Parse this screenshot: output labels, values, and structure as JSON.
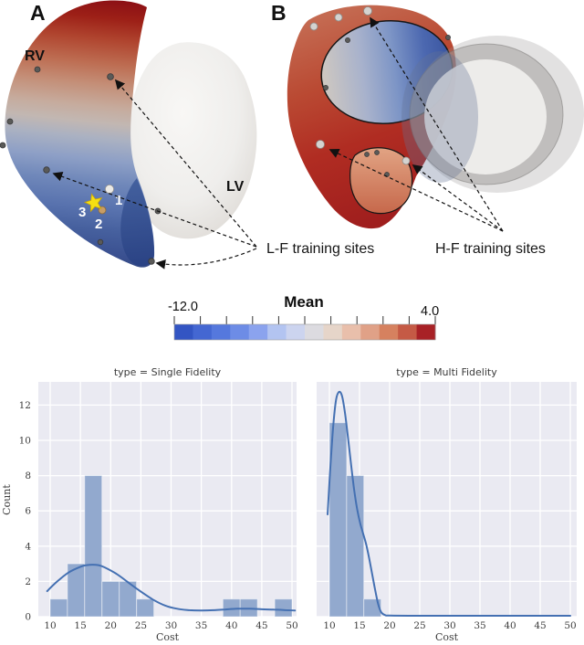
{
  "panels": {
    "a_label": "A",
    "b_label": "B",
    "rv": "RV",
    "lv": "LV",
    "site_1": "1",
    "site_2": "2",
    "site_3": "3",
    "lf_caption": "L-F training sites",
    "hf_caption": "H-F training sites"
  },
  "colorbar": {
    "title": "Mean",
    "min_label": "-12.0",
    "max_label": "4.0",
    "range": [
      -12.0,
      4.0
    ],
    "n_ticks": 11,
    "segments": [
      "#3355c3",
      "#4467d2",
      "#5578dd",
      "#6d8ce6",
      "#8ba3ee",
      "#b3c4f1",
      "#ccd4ef",
      "#dcdbe0",
      "#e6d5c9",
      "#e9bfab",
      "#e0a187",
      "#d6815f",
      "#c55a45",
      "#a82126"
    ]
  },
  "chart_data": [
    {
      "type": "bar",
      "subtype": "histogram_with_kde",
      "title": "type = Single Fidelity",
      "xlabel": "Cost",
      "ylabel": "Count",
      "grid": true,
      "legend_position": "none",
      "xticks": [
        10,
        15,
        20,
        25,
        30,
        35,
        40,
        45,
        50
      ],
      "yticks": [
        0,
        2,
        4,
        6,
        8,
        10,
        12
      ],
      "xlim": [
        7.9,
        51.1
      ],
      "ylim": [
        0,
        13.3
      ],
      "bin_edges": [
        10,
        12.86,
        15.71,
        18.57,
        21.43,
        24.29,
        27.14,
        30,
        32.86,
        35.71,
        38.57,
        41.43,
        44.29,
        47.14,
        50
      ],
      "counts": [
        1,
        3,
        8,
        2,
        2,
        1,
        0,
        0,
        0,
        0,
        1,
        1,
        0,
        1
      ],
      "kde_x": [
        9.5,
        11,
        13,
        15,
        16,
        17,
        18,
        19,
        21,
        23,
        25,
        27,
        29,
        31,
        33,
        35,
        37,
        39,
        41,
        43,
        45,
        47,
        49,
        50.5
      ],
      "kde_y": [
        1.45,
        1.95,
        2.5,
        2.83,
        2.92,
        2.95,
        2.92,
        2.8,
        2.42,
        1.92,
        1.42,
        0.97,
        0.63,
        0.45,
        0.37,
        0.35,
        0.37,
        0.41,
        0.45,
        0.45,
        0.42,
        0.4,
        0.37,
        0.35
      ],
      "bar_color": "#92a9ce",
      "line_color": "#4470b2"
    },
    {
      "type": "bar",
      "subtype": "histogram_with_kde",
      "title": "type = Multi Fidelity",
      "xlabel": "Cost",
      "ylabel": "Count",
      "grid": true,
      "legend_position": "none",
      "xticks": [
        10,
        15,
        20,
        25,
        30,
        35,
        40,
        45,
        50
      ],
      "yticks": [
        0,
        2,
        4,
        6,
        8,
        10,
        12
      ],
      "xlim": [
        7.9,
        51.1
      ],
      "ylim": [
        0,
        13.3
      ],
      "bin_edges": [
        10,
        12.86,
        15.71,
        18.57
      ],
      "counts": [
        11,
        8,
        1
      ],
      "kde_x": [
        9.7,
        10.1,
        10.6,
        11.1,
        11.6,
        12.1,
        12.6,
        13.1,
        13.6,
        14.1,
        14.6,
        15.1,
        15.6,
        16.1,
        16.6,
        17.1,
        17.6,
        18.1,
        18.6,
        19.2,
        20,
        25,
        30,
        40,
        50
      ],
      "kde_y": [
        5.8,
        8.2,
        10.7,
        12.3,
        12.75,
        12.5,
        11.5,
        10.1,
        8.6,
        7.2,
        6.1,
        5.3,
        4.7,
        4.1,
        3.3,
        2.4,
        1.5,
        0.7,
        0.25,
        0.1,
        0.06,
        0.05,
        0.05,
        0.05,
        0.05
      ],
      "bar_color": "#92a9ce",
      "line_color": "#4470b2"
    }
  ]
}
